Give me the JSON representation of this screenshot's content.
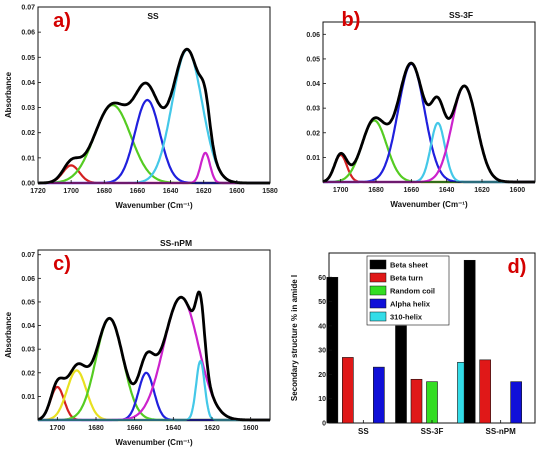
{
  "chart_data": [
    {
      "type": "line",
      "panel_label": "a)",
      "title": "SS",
      "xlabel": "Wavenumber (Cm⁻¹)",
      "ylabel": "Absorbance",
      "xlim": [
        1720,
        1580
      ],
      "ylim": [
        0,
        0.07
      ],
      "x_ticks": [
        1720,
        1700,
        1680,
        1660,
        1640,
        1620,
        1600,
        1580
      ],
      "y_ticks": [
        0.0,
        0.01,
        0.02,
        0.03,
        0.04,
        0.05,
        0.06,
        0.07
      ],
      "grid": false,
      "components": [
        {
          "color": "#d42020",
          "center": 1700,
          "height": 0.007,
          "width": 5
        },
        {
          "color": "#55cc22",
          "center": 1675,
          "height": 0.031,
          "width": 11
        },
        {
          "color": "#2020dd",
          "center": 1654,
          "height": 0.033,
          "width": 7.5
        },
        {
          "color": "#44c8e8",
          "center": 1630,
          "height": 0.053,
          "width": 9
        },
        {
          "color": "#cc22cc",
          "center": 1619,
          "height": 0.012,
          "width": 2.8
        }
      ],
      "envelope_color": "#000000"
    },
    {
      "type": "line",
      "panel_label": "b)",
      "title": "SS-3F",
      "xlabel": "Wavenumber (Cm⁻¹)",
      "ylabel": "",
      "xlim": [
        1710,
        1590
      ],
      "ylim": [
        0,
        0.065
      ],
      "x_ticks": [
        1700,
        1680,
        1660,
        1640,
        1620,
        1600
      ],
      "y_ticks": [
        0.01,
        0.02,
        0.03,
        0.04,
        0.05,
        0.06
      ],
      "grid": false,
      "components": [
        {
          "color": "#d42020",
          "center": 1700,
          "height": 0.011,
          "width": 3.5
        },
        {
          "color": "#55cc22",
          "center": 1681,
          "height": 0.025,
          "width": 7
        },
        {
          "color": "#2020dd",
          "center": 1660,
          "height": 0.048,
          "width": 7.5
        },
        {
          "color": "#44c8e8",
          "center": 1645,
          "height": 0.024,
          "width": 4
        },
        {
          "color": "#cc22cc",
          "center": 1630,
          "height": 0.039,
          "width": 7
        }
      ],
      "envelope_color": "#000000"
    },
    {
      "type": "line",
      "panel_label": "c)",
      "title": "SS-nPM",
      "xlabel": "Wavenumber (Cm⁻¹)",
      "ylabel": "Absorbance",
      "xlim": [
        1710,
        1590
      ],
      "ylim": [
        0,
        0.072
      ],
      "x_ticks": [
        1700,
        1680,
        1660,
        1640,
        1620,
        1600
      ],
      "y_ticks": [
        0.01,
        0.02,
        0.03,
        0.04,
        0.05,
        0.06,
        0.07
      ],
      "grid": false,
      "components": [
        {
          "color": "#d42020",
          "center": 1700,
          "height": 0.014,
          "width": 3.5
        },
        {
          "color": "#e8e020",
          "center": 1690,
          "height": 0.021,
          "width": 5
        },
        {
          "color": "#55cc22",
          "center": 1673,
          "height": 0.043,
          "width": 7
        },
        {
          "color": "#2020dd",
          "center": 1654,
          "height": 0.02,
          "width": 4
        },
        {
          "color": "#cc22cc",
          "center": 1636,
          "height": 0.052,
          "width": 9
        },
        {
          "color": "#44c8e8",
          "center": 1626,
          "height": 0.025,
          "width": 2.2
        }
      ],
      "envelope_color": "#000000"
    },
    {
      "type": "bar",
      "panel_label": "d)",
      "ylabel": "Secondary structure % in amide I",
      "categories": [
        "SS",
        "SS-3F",
        "SS-nPM"
      ],
      "ylim": [
        0,
        70
      ],
      "y_ticks": [
        0,
        10,
        20,
        30,
        40,
        50,
        60
      ],
      "legend_position": "top-left",
      "grid": false,
      "series": [
        {
          "name": "Beta sheet",
          "color": "#000000",
          "values": [
            60,
            40,
            67
          ]
        },
        {
          "name": "Beta turn",
          "color": "#e01818",
          "values": [
            27,
            18,
            26
          ]
        },
        {
          "name": "Random coil",
          "color": "#33dd22",
          "values": [
            0,
            17,
            0
          ]
        },
        {
          "name": "Alpha helix",
          "color": "#1010d8",
          "values": [
            23,
            0,
            17
          ]
        },
        {
          "name": "310-helix",
          "color": "#33dde8",
          "values": [
            0,
            25,
            0
          ]
        }
      ]
    }
  ]
}
